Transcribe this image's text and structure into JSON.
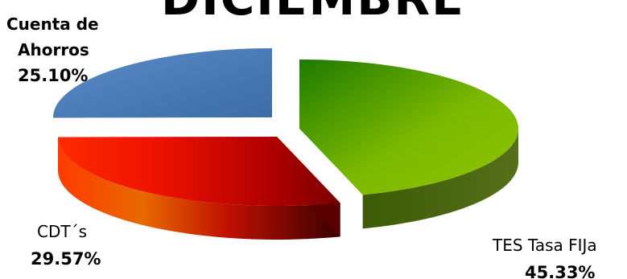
{
  "chart_data": {
    "type": "pie",
    "title": "DICIEMBRE",
    "slices": [
      {
        "name": "TES Tasa FIJa",
        "value": 45.33,
        "label": "45.33%",
        "color": "#6aa400",
        "color_dark": "#3f5f0a"
      },
      {
        "name": "CDT´s",
        "value": 29.57,
        "label": "29.57%",
        "color": "#ee1c00",
        "color_dark": "#7a0000"
      },
      {
        "name": "Cuenta de Ahorros",
        "value": 25.1,
        "label": "25.10%",
        "color": "#4a79b6",
        "color_dark": "#2b4a7a"
      }
    ],
    "labels": {
      "tes_name": "TES Tasa FIJa",
      "tes_value": "45.33%",
      "cdt_name": "CDT´s",
      "cdt_value": "29.57%",
      "ahorros_line1": "Cuenta de",
      "ahorros_line2": "Ahorros",
      "ahorros_value": "25.10%"
    },
    "legend": "none"
  }
}
